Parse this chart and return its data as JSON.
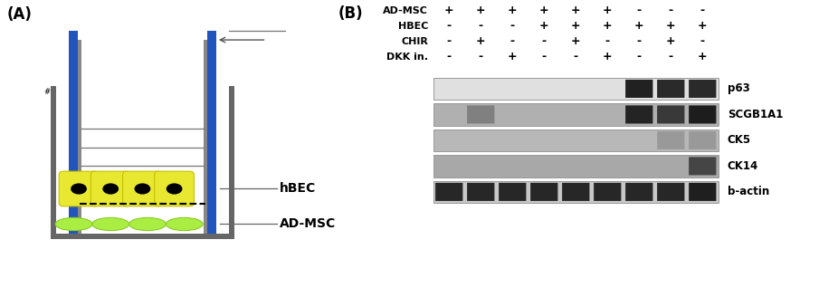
{
  "panel_A_label": "(A)",
  "panel_B_label": "(B)",
  "hBEC_label": "hBEC",
  "ADMSC_label": "AD-MSC",
  "col_data": {
    "AD-MSC": [
      "+",
      "+",
      "+",
      "+",
      "+",
      "+",
      "-",
      "-",
      "-"
    ],
    "HBEC": [
      "-",
      "-",
      "-",
      "+",
      "+",
      "+",
      "+",
      "+",
      "+"
    ],
    "CHIR": [
      "-",
      "+",
      "-",
      "-",
      "+",
      "-",
      "-",
      "+",
      "-"
    ],
    "DKK in.": [
      "-",
      "-",
      "+",
      "-",
      "-",
      "+",
      "-",
      "-",
      "+"
    ]
  },
  "table_rows": [
    "AD-MSC",
    "HBEC",
    "CHIR",
    "DKK in."
  ],
  "band_labels": [
    "p63",
    "SCGB1A1",
    "CK5",
    "CK14",
    "b-actin"
  ],
  "bg_color": "#ffffff",
  "band_intensities": {
    "p63": [
      0,
      0,
      0,
      0,
      0,
      0,
      0.92,
      0.88,
      0.88
    ],
    "SCGB1A1": [
      0,
      0.3,
      0,
      0,
      0,
      0,
      0.88,
      0.75,
      0.92
    ],
    "CK5": [
      0,
      0,
      0,
      0,
      0,
      0,
      0,
      0.18,
      0.18
    ],
    "CK14": [
      0,
      0,
      0,
      0,
      0,
      0,
      0,
      0,
      0.65
    ],
    "b-actin": [
      0.88,
      0.88,
      0.88,
      0.88,
      0.88,
      0.88,
      0.88,
      0.88,
      0.92
    ]
  },
  "band_bgs": {
    "p63": "#e0e0e0",
    "SCGB1A1": "#b0b0b0",
    "CK5": "#b8b8b8",
    "CK14": "#a8a8a8",
    "b-actin": "#c8c8c8"
  }
}
